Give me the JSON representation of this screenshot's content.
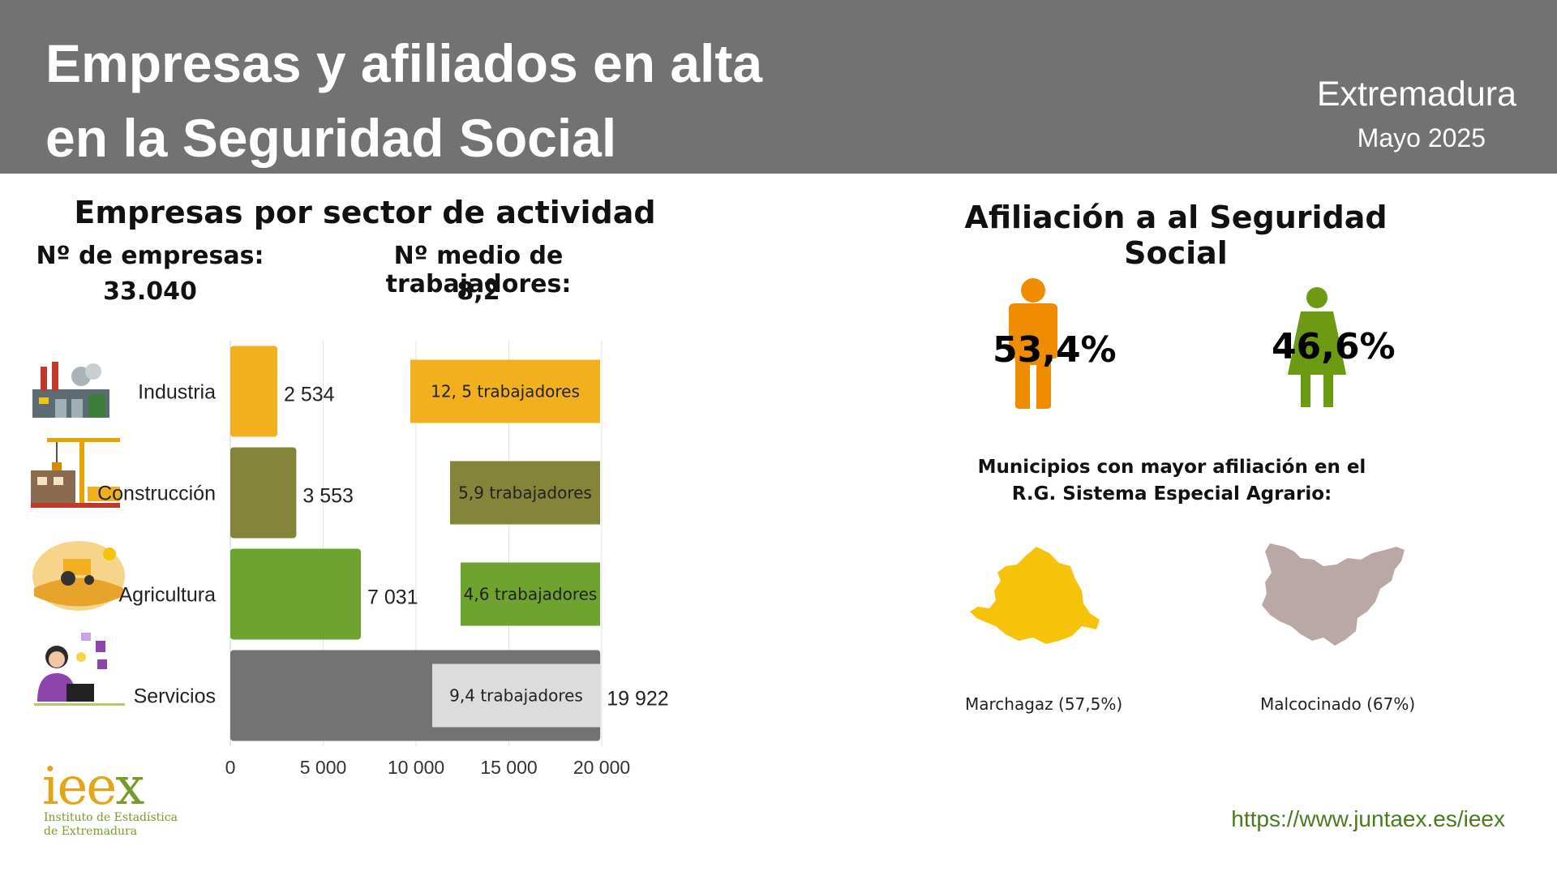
{
  "header": {
    "title_line1": "Empresas y afiliados en alta",
    "title_line2": "en la Seguridad Social",
    "region": "Extremadura",
    "period": "Mayo 2025"
  },
  "left": {
    "section_title": "Empresas por sector de actividad",
    "companies_label": "Nº de empresas:",
    "companies_value": "33.040",
    "avg_workers_label": "Nº medio de trabajadores:",
    "avg_workers_value": "8,2"
  },
  "chart_data": {
    "type": "bar",
    "orientation": "horizontal",
    "categories": [
      "Industria",
      "Construcción",
      "Agricultura",
      "Servicios"
    ],
    "values": [
      2534,
      3553,
      7031,
      19922
    ],
    "value_labels": [
      "2 534",
      "3 553",
      "7 031",
      "19 922"
    ],
    "workers_labels": [
      "12, 5 trabajadores",
      "5,9 trabajadores",
      "4,6 trabajadores",
      "9,4 trabajadores"
    ],
    "xlim": [
      0,
      20000
    ],
    "xticks": [
      0,
      5000,
      10000,
      15000,
      20000
    ],
    "xtick_labels": [
      "0",
      "5 000",
      "10 000",
      "15 000",
      "20 000"
    ],
    "grid": true,
    "colors": [
      "#f2b01e",
      "#848538",
      "#6ea32f",
      "#737373"
    ],
    "workers_box_colors": [
      "#f2b01e",
      "#848538",
      "#6ea32f",
      "#dcdcdc"
    ],
    "icons": [
      "factory-icon",
      "crane-icon",
      "farm-tractor-icon",
      "office-worker-icon"
    ]
  },
  "right": {
    "section_title": "Afiliación a al Seguridad Social",
    "men_pct": "53,4%",
    "women_pct": "46,6%",
    "men_color": "#f08c00",
    "women_color": "#6c9a12",
    "municipios_title_line1": "Municipios con mayor afiliación en el",
    "municipios_title_line2": "R.G. Sistema Especial Agrario:",
    "municipio1": "Marchagaz (57,5%)",
    "municipio2": "Malcocinado (67%)",
    "map1_color": "#f7c30a",
    "map2_color": "#b9a8a6"
  },
  "footer": {
    "url": "https://www.juntaex.es/ieex",
    "logo_text": "ieex",
    "logo_sub1": "Instituto de Estadística",
    "logo_sub2": "de Extremadura"
  }
}
